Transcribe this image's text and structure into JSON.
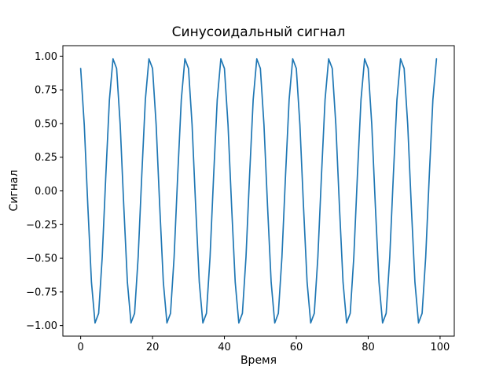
{
  "figure": {
    "background": "#ffffff"
  },
  "chart_data": {
    "type": "line",
    "title": "Синусоидальный сигнал",
    "xlabel": "Время",
    "ylabel": "Сигнал",
    "line_color": "#1f77b4",
    "grid": false,
    "legend_position": "none",
    "xlim": [
      -4.95,
      103.95
    ],
    "ylim": [
      -1.078,
      1.078
    ],
    "x_ticks": [
      0,
      20,
      40,
      60,
      80,
      100
    ],
    "x_tick_labels": [
      "0",
      "20",
      "40",
      "60",
      "80",
      "100"
    ],
    "y_ticks": [
      -1.0,
      -0.75,
      -0.5,
      -0.25,
      0.0,
      0.25,
      0.5,
      0.75,
      1.0
    ],
    "y_tick_labels": [
      "−1.00",
      "−0.75",
      "−0.50",
      "−0.25",
      "0.00",
      "0.25",
      "0.50",
      "0.75",
      "1.00"
    ],
    "x": [
      0,
      1,
      2,
      3,
      4,
      5,
      6,
      7,
      8,
      9,
      10,
      11,
      12,
      13,
      14,
      15,
      16,
      17,
      18,
      19,
      20,
      21,
      22,
      23,
      24,
      25,
      26,
      27,
      28,
      29,
      30,
      31,
      32,
      33,
      34,
      35,
      36,
      37,
      38,
      39,
      40,
      41,
      42,
      43,
      44,
      45,
      46,
      47,
      48,
      49,
      50,
      51,
      52,
      53,
      54,
      55,
      56,
      57,
      58,
      59,
      60,
      61,
      62,
      63,
      64,
      65,
      66,
      67,
      68,
      69,
      70,
      71,
      72,
      73,
      74,
      75,
      76,
      77,
      78,
      79,
      80,
      81,
      82,
      83,
      84,
      85,
      86,
      87,
      88,
      89,
      90,
      91,
      92,
      93,
      94,
      95,
      96,
      97,
      98,
      99
    ],
    "y": [
      0.909,
      0.491,
      -0.115,
      -0.677,
      -0.98,
      -0.909,
      -0.491,
      0.115,
      0.677,
      0.98,
      0.909,
      0.491,
      -0.115,
      -0.677,
      -0.98,
      -0.909,
      -0.491,
      0.115,
      0.677,
      0.98,
      0.909,
      0.491,
      -0.115,
      -0.677,
      -0.98,
      -0.909,
      -0.491,
      0.115,
      0.677,
      0.98,
      0.909,
      0.491,
      -0.115,
      -0.677,
      -0.98,
      -0.909,
      -0.491,
      0.115,
      0.677,
      0.98,
      0.909,
      0.491,
      -0.115,
      -0.677,
      -0.98,
      -0.909,
      -0.491,
      0.115,
      0.677,
      0.98,
      0.909,
      0.491,
      -0.115,
      -0.677,
      -0.98,
      -0.909,
      -0.491,
      0.115,
      0.677,
      0.98,
      0.909,
      0.491,
      -0.115,
      -0.677,
      -0.98,
      -0.909,
      -0.491,
      0.115,
      0.677,
      0.98,
      0.909,
      0.491,
      -0.115,
      -0.677,
      -0.98,
      -0.909,
      -0.491,
      0.115,
      0.677,
      0.98,
      0.909,
      0.491,
      -0.115,
      -0.677,
      -0.98,
      -0.909,
      -0.491,
      0.115,
      0.677,
      0.98,
      0.909,
      0.491,
      -0.115,
      -0.677,
      -0.98,
      -0.909,
      -0.491,
      0.115,
      0.677,
      0.98
    ]
  }
}
